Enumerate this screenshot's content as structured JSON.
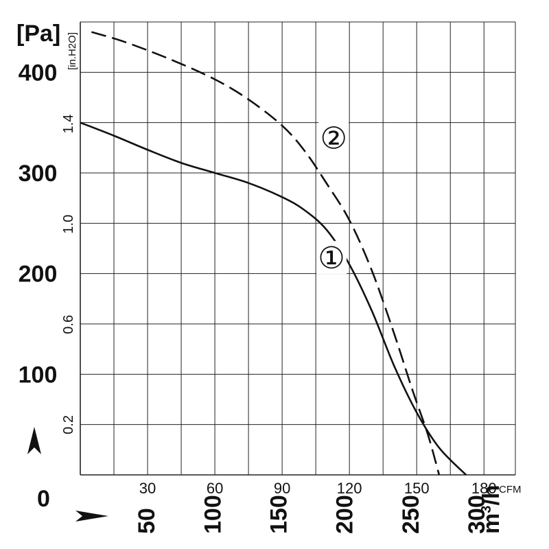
{
  "chart_data": {
    "type": "line",
    "grid": true,
    "axes": {
      "y_pa": {
        "unit": "[Pa]",
        "ticks": [
          0,
          100,
          200,
          300,
          400
        ],
        "ylim": [
          0,
          450
        ]
      },
      "y_inh2o": {
        "unit": "[in.H2O]",
        "ticks": [
          "0.2",
          "0.6",
          "1.0",
          "1.4"
        ],
        "tick_values": [
          0.2,
          0.6,
          1.0,
          1.4
        ]
      },
      "x_cfm": {
        "unit": "CFM",
        "ticks": [
          30,
          60,
          90,
          120,
          150,
          180
        ],
        "xlim": [
          0,
          194
        ]
      },
      "x_m3h": {
        "unit": "m³/h",
        "unit_base": "m",
        "unit_sup": "3",
        "unit_tail": "/h",
        "ticks": [
          50,
          100,
          150,
          200,
          250,
          300
        ]
      }
    },
    "series": [
      {
        "label": "①",
        "style": "solid",
        "x_cfm": [
          0,
          15,
          30,
          45,
          60,
          75,
          90,
          100,
          110,
          120,
          130,
          140,
          150,
          160,
          172
        ],
        "y_pa": [
          350,
          337,
          323,
          310,
          300,
          290,
          276,
          263,
          243,
          209,
          163,
          108,
          62,
          27,
          0
        ]
      },
      {
        "label": "②",
        "style": "dashed",
        "x_cfm": [
          5,
          20,
          40,
          60,
          75,
          90,
          100,
          110,
          120,
          130,
          140,
          148,
          155,
          160
        ],
        "y_pa": [
          440,
          430,
          413,
          393,
          373,
          347,
          322,
          289,
          253,
          203,
          140,
          85,
          40,
          0
        ]
      }
    ],
    "series_labels": [
      {
        "text": "①",
        "x_cfm": 112,
        "y_pa": 216
      },
      {
        "text": "②",
        "x_cfm": 113,
        "y_pa": 335
      }
    ],
    "baseline_label": "0"
  }
}
